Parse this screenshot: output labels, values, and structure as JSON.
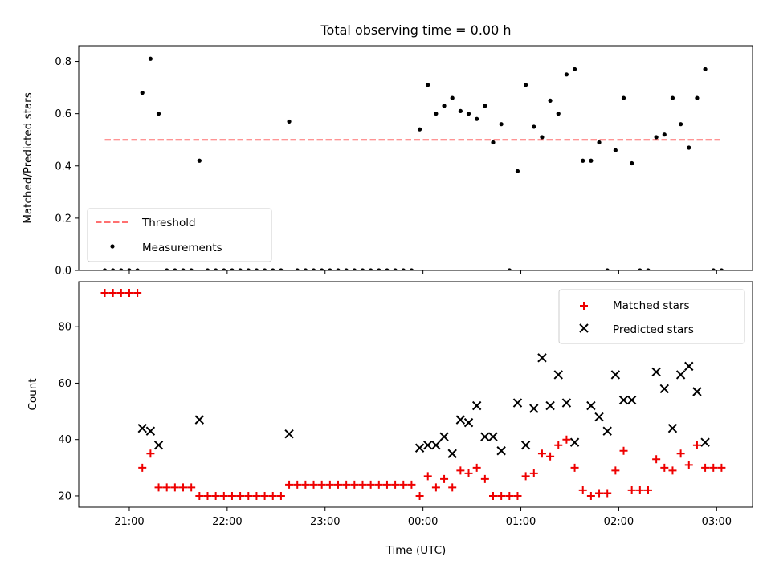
{
  "title": "Total observing time = 0.00 h",
  "xlabel": "Time (UTC)",
  "x_ticks": [
    "21:00",
    "22:00",
    "23:00",
    "00:00",
    "01:00",
    "02:00",
    "03:00"
  ],
  "colors": {
    "threshold": "#ff7070",
    "measurements": "#000000",
    "matched": "#ee0000",
    "predicted": "#000000"
  },
  "chart_data": [
    {
      "type": "scatter",
      "panel": "top",
      "ylabel": "Matched/Predicted stars",
      "xlim": [
        "20:29",
        "03:22"
      ],
      "ylim": [
        0,
        0.86
      ],
      "y_ticks": [
        "0.0",
        "0.2",
        "0.4",
        "0.6",
        "0.8"
      ],
      "legend_position": "lower-left",
      "threshold": {
        "name": "Threshold",
        "y": 0.5,
        "x_range": [
          "20:45",
          "03:03"
        ],
        "style": "dashed"
      },
      "series": [
        {
          "name": "Measurements",
          "marker": "dot",
          "x": [
            "20:45",
            "20:50",
            "20:55",
            "21:00",
            "21:05",
            "21:08",
            "21:13",
            "21:18",
            "21:23",
            "21:28",
            "21:33",
            "21:38",
            "21:43",
            "21:48",
            "21:53",
            "21:58",
            "22:03",
            "22:08",
            "22:13",
            "22:18",
            "22:23",
            "22:28",
            "22:33",
            "22:38",
            "22:43",
            "22:48",
            "22:53",
            "22:58",
            "23:03",
            "23:08",
            "23:13",
            "23:18",
            "23:23",
            "23:28",
            "23:33",
            "23:38",
            "23:43",
            "23:48",
            "23:53",
            "23:58",
            "00:03",
            "00:08",
            "00:13",
            "00:18",
            "00:23",
            "00:28",
            "00:33",
            "00:38",
            "00:43",
            "00:48",
            "00:53",
            "00:58",
            "01:03",
            "01:08",
            "01:13",
            "01:18",
            "01:23",
            "01:28",
            "01:33",
            "01:38",
            "01:43",
            "01:48",
            "01:53",
            "01:58",
            "02:03",
            "02:08",
            "02:13",
            "02:18",
            "02:23",
            "02:28",
            "02:33",
            "02:38",
            "02:43",
            "02:48",
            "02:53",
            "02:58",
            "03:03"
          ],
          "y": [
            0,
            0,
            0,
            0,
            0,
            0.68,
            0.81,
            0.6,
            0,
            0,
            0,
            0,
            0.42,
            0,
            0,
            0,
            0,
            0,
            0,
            0,
            0,
            0,
            0,
            0.57,
            0,
            0,
            0,
            0,
            0,
            0,
            0,
            0,
            0,
            0,
            0,
            0,
            0,
            0,
            0,
            0.54,
            0.71,
            0.6,
            0.63,
            0.66,
            0.61,
            0.6,
            0.58,
            0.63,
            0.49,
            0.56,
            0,
            0.38,
            0.71,
            0.55,
            0.51,
            0.65,
            0.6,
            0.75,
            0.77,
            0.42,
            0.42,
            0.49,
            0,
            0.46,
            0.66,
            0.41,
            0,
            0,
            0.51,
            0.52,
            0.66,
            0.56,
            0.47,
            0.66,
            0.77,
            0,
            0
          ]
        }
      ]
    },
    {
      "type": "scatter",
      "panel": "bottom",
      "ylabel": "Count",
      "xlim": [
        "20:29",
        "03:22"
      ],
      "ylim": [
        16,
        96
      ],
      "y_ticks": [
        "20",
        "40",
        "60",
        "80"
      ],
      "legend_position": "top-right",
      "series": [
        {
          "name": "Matched stars",
          "marker": "plus",
          "x": [
            "20:45",
            "20:50",
            "20:55",
            "21:00",
            "21:05",
            "21:08",
            "21:13",
            "21:18",
            "21:23",
            "21:28",
            "21:33",
            "21:38",
            "21:43",
            "21:48",
            "21:53",
            "21:58",
            "22:03",
            "22:08",
            "22:13",
            "22:18",
            "22:23",
            "22:28",
            "22:33",
            "22:38",
            "22:43",
            "22:48",
            "22:53",
            "22:58",
            "23:03",
            "23:08",
            "23:13",
            "23:18",
            "23:23",
            "23:28",
            "23:33",
            "23:38",
            "23:43",
            "23:48",
            "23:53",
            "23:58",
            "00:03",
            "00:08",
            "00:13",
            "00:18",
            "00:23",
            "00:28",
            "00:33",
            "00:38",
            "00:43",
            "00:48",
            "00:53",
            "00:58",
            "01:03",
            "01:08",
            "01:13",
            "01:18",
            "01:23",
            "01:28",
            "01:33",
            "01:38",
            "01:43",
            "01:48",
            "01:53",
            "01:58",
            "02:03",
            "02:08",
            "02:13",
            "02:18",
            "02:23",
            "02:28",
            "02:33",
            "02:38",
            "02:43",
            "02:48",
            "02:53",
            "02:58",
            "03:03"
          ],
          "y": [
            92,
            92,
            92,
            92,
            92,
            30,
            35,
            23,
            23,
            23,
            23,
            23,
            20,
            20,
            20,
            20,
            20,
            20,
            20,
            20,
            20,
            20,
            20,
            24,
            24,
            24,
            24,
            24,
            24,
            24,
            24,
            24,
            24,
            24,
            24,
            24,
            24,
            24,
            24,
            20,
            27,
            23,
            26,
            23,
            29,
            28,
            30,
            26,
            20,
            20,
            20,
            20,
            27,
            28,
            35,
            34,
            38,
            40,
            30,
            22,
            20,
            21,
            21,
            29,
            36,
            22,
            22,
            22,
            33,
            30,
            29,
            35,
            31,
            38,
            30,
            30,
            30
          ]
        },
        {
          "name": "Predicted stars",
          "marker": "x",
          "x": [
            "21:08",
            "21:13",
            "21:18",
            "21:43",
            "22:38",
            "23:58",
            "00:03",
            "00:08",
            "00:13",
            "00:18",
            "00:23",
            "00:28",
            "00:33",
            "00:38",
            "00:43",
            "00:48",
            "00:58",
            "01:03",
            "01:08",
            "01:13",
            "01:18",
            "01:23",
            "01:28",
            "01:33",
            "01:43",
            "01:48",
            "01:53",
            "01:58",
            "02:03",
            "02:08",
            "02:23",
            "02:28",
            "02:33",
            "02:38",
            "02:43",
            "02:48",
            "02:53"
          ],
          "y": [
            44,
            43,
            38,
            47,
            42,
            37,
            38,
            38,
            41,
            35,
            47,
            46,
            52,
            41,
            41,
            36,
            53,
            38,
            51,
            69,
            52,
            63,
            53,
            39,
            52,
            48,
            43,
            63,
            54,
            54,
            64,
            58,
            44,
            63,
            66,
            57,
            39
          ]
        }
      ]
    }
  ]
}
